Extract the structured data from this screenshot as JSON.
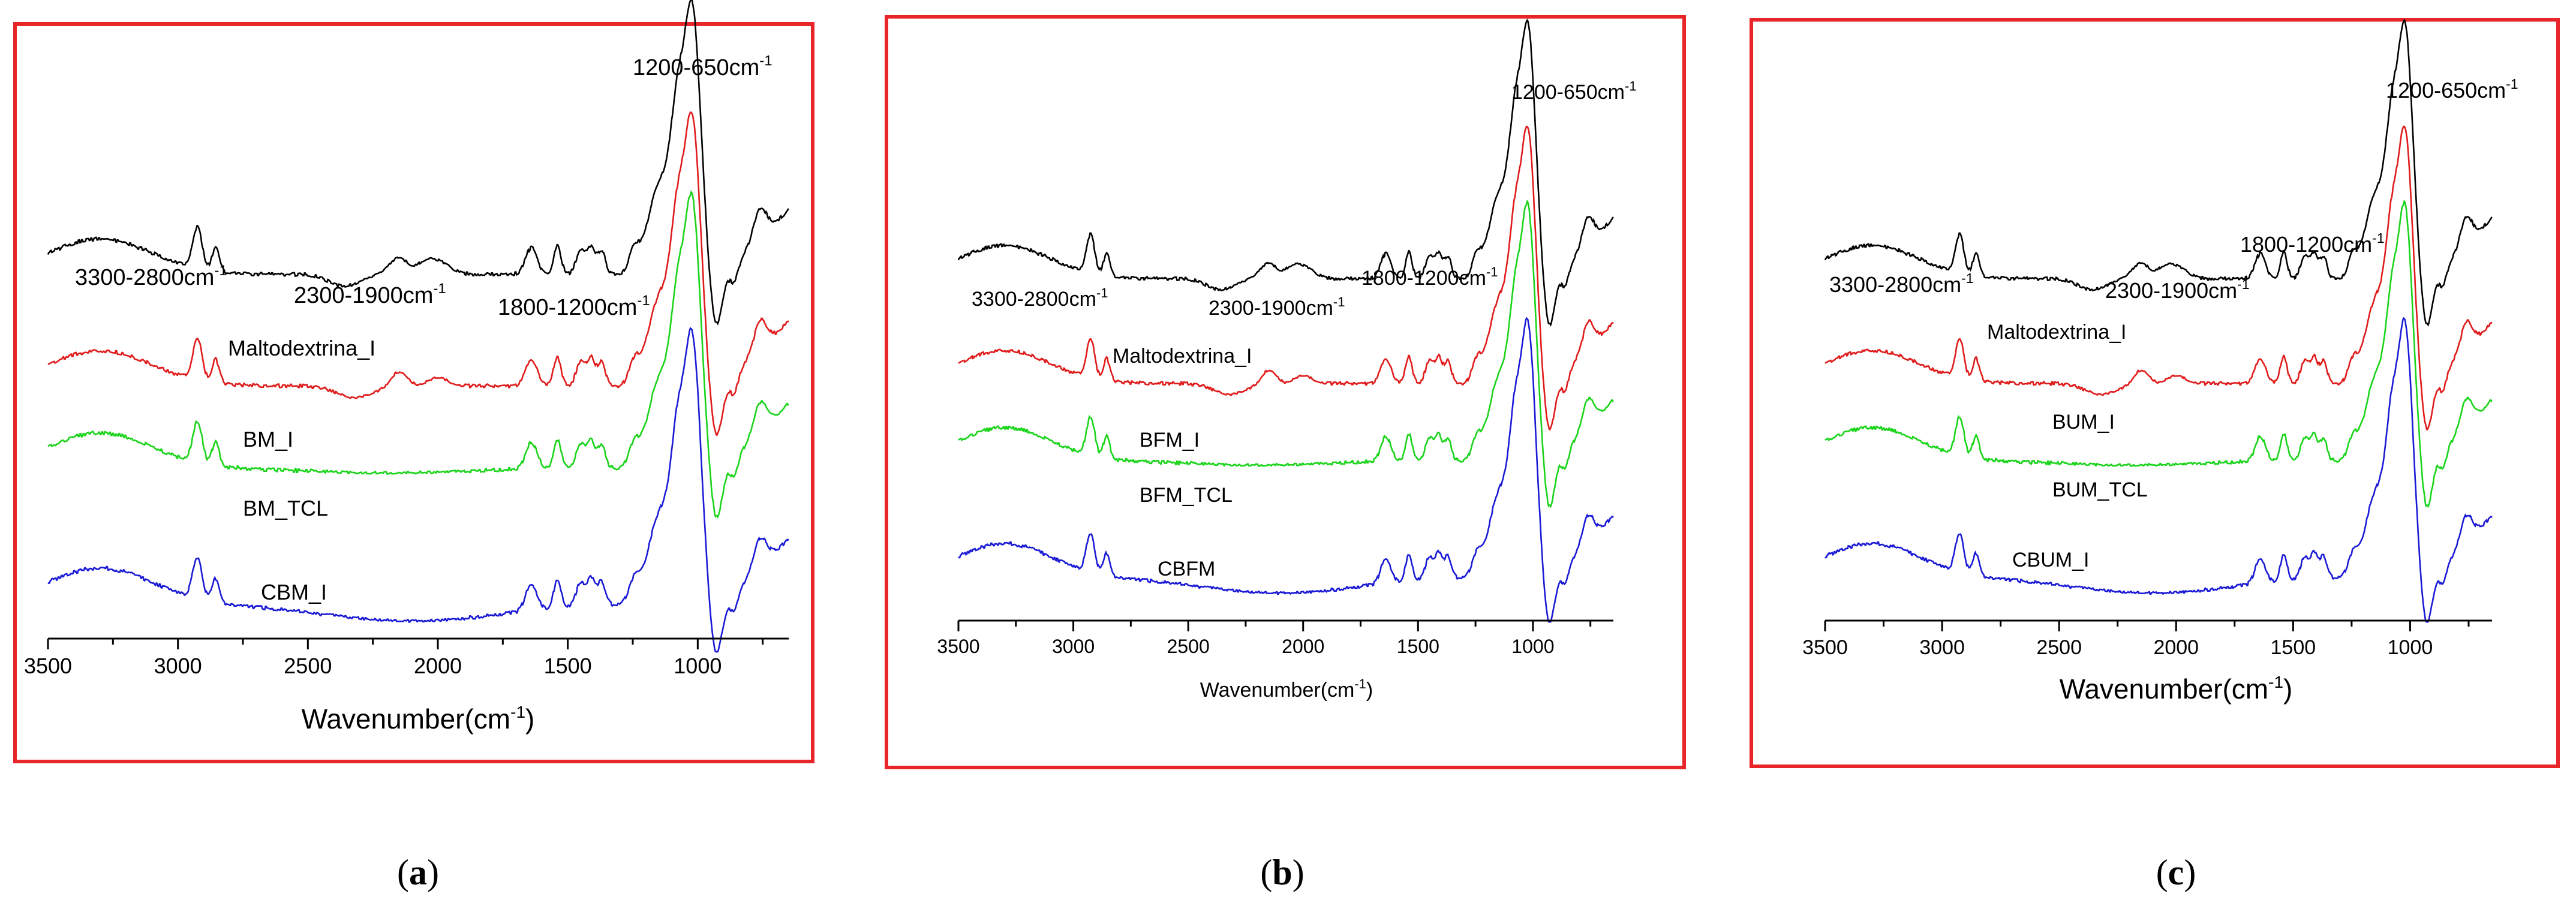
{
  "figure": {
    "border_color": "#e8262a",
    "series_colors": {
      "black": "#000000",
      "red": "#e01b1b",
      "green": "#19d419",
      "blue": "#1a1ad6"
    }
  },
  "chart_data": [
    {
      "type": "line",
      "panel_label": "(a)",
      "panel_letter": "a",
      "xlabel": "Wavenumber(cm-1)",
      "xlabel_main": "Wavenumber(cm",
      "xlabel_sup": "-1",
      "xlabel_tail": ")",
      "xlim": [
        3500,
        650
      ],
      "xticks": [
        "3500",
        "3000",
        "2500",
        "2000",
        "1500",
        "1000"
      ],
      "annotations": [
        {
          "text": "3300-2800cm",
          "sup": "-1"
        },
        {
          "text": "2300-1900cm",
          "sup": "-1"
        },
        {
          "text": "1800-1200cm",
          "sup": "-1"
        },
        {
          "text": "1200-650cm",
          "sup": "-1"
        }
      ],
      "series": [
        {
          "name": "Maltodextrina_I",
          "color": "#000000",
          "offset": 0.62
        },
        {
          "name": "BM_I",
          "color": "#e01b1b",
          "offset": 0.43
        },
        {
          "name": "BM_TCL",
          "color": "#19d419",
          "offset": 0.29
        },
        {
          "name": "CBM_I",
          "color": "#1a1ad6",
          "offset": 0.06
        }
      ]
    },
    {
      "type": "line",
      "panel_label": "(b)",
      "panel_letter": "b",
      "xlabel": "Wavenumber(cm-1)",
      "xlabel_main": "Wavenumber(cm",
      "xlabel_sup": "-1",
      "xlabel_tail": ")",
      "xlim": [
        3500,
        650
      ],
      "xticks": [
        "3500",
        "3000",
        "2500",
        "2000",
        "1500",
        "1000"
      ],
      "annotations": [
        {
          "text": "3300-2800cm",
          "sup": "-1"
        },
        {
          "text": "2300-1900cm",
          "sup": "-1"
        },
        {
          "text": "1800-1200cm",
          "sup": "-1"
        },
        {
          "text": "1200-650cm",
          "sup": "-1"
        }
      ],
      "series": [
        {
          "name": "Maltodextrina_I",
          "color": "#000000",
          "offset": 0.62
        },
        {
          "name": "BFM_I",
          "color": "#e01b1b",
          "offset": 0.43
        },
        {
          "name": "BFM_TCL",
          "color": "#19d419",
          "offset": 0.29
        },
        {
          "name": "CBFM",
          "color": "#1a1ad6",
          "offset": 0.08
        }
      ]
    },
    {
      "type": "line",
      "panel_label": "(c)",
      "panel_letter": "c",
      "xlabel": "Wavenumber(cm-1)",
      "xlabel_main": "Wavenumber(cm",
      "xlabel_sup": "-1",
      "xlabel_tail": ")",
      "xlim": [
        3500,
        650
      ],
      "xticks": [
        "3500",
        "3000",
        "2500",
        "2000",
        "1500",
        "1000"
      ],
      "annotations": [
        {
          "text": "3300-2800cm",
          "sup": "-1"
        },
        {
          "text": "2300-1900cm",
          "sup": "-1"
        },
        {
          "text": "1800-1200cm",
          "sup": "-1"
        },
        {
          "text": "1200-650cm",
          "sup": "-1"
        }
      ],
      "series": [
        {
          "name": "Maltodextrina_I",
          "color": "#000000",
          "offset": 0.62
        },
        {
          "name": "BUM_I",
          "color": "#e01b1b",
          "offset": 0.43
        },
        {
          "name": "BUM_TCL",
          "color": "#19d419",
          "offset": 0.29
        },
        {
          "name": "CBUM_I",
          "color": "#1a1ad6",
          "offset": 0.08
        }
      ]
    }
  ]
}
